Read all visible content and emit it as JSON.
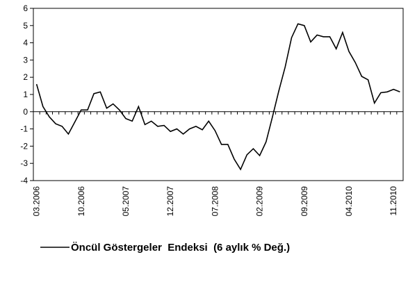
{
  "chart_data": {
    "type": "line",
    "categories": [
      "03.2006",
      null,
      null,
      null,
      null,
      null,
      null,
      "10.2006",
      null,
      null,
      null,
      null,
      null,
      null,
      "05.2007",
      null,
      null,
      null,
      null,
      null,
      null,
      "12.2007",
      null,
      null,
      null,
      null,
      null,
      null,
      "07.2008",
      null,
      null,
      null,
      null,
      null,
      null,
      "02.2009",
      null,
      null,
      null,
      null,
      null,
      null,
      "09.2009",
      null,
      null,
      null,
      null,
      null,
      null,
      "04.2010",
      null,
      null,
      null,
      null,
      null,
      null,
      "11.2010",
      null
    ],
    "series": [
      {
        "name": "Öncül Göstergeler  Endeksi  (6 aylık % Değ.)",
        "color": "#000000",
        "values": [
          1.6,
          0.3,
          -0.3,
          -0.7,
          -0.85,
          -1.3,
          -0.6,
          0.1,
          0.1,
          1.05,
          1.15,
          0.2,
          0.45,
          0.1,
          -0.4,
          -0.55,
          0.3,
          -0.75,
          -0.55,
          -0.85,
          -0.8,
          -1.15,
          -1.0,
          -1.3,
          -1.0,
          -0.85,
          -1.05,
          -0.55,
          -1.1,
          -1.9,
          -1.9,
          -2.75,
          -3.35,
          -2.5,
          -2.15,
          -2.55,
          -1.75,
          -0.3,
          1.2,
          2.6,
          4.3,
          5.1,
          5.0,
          4.05,
          4.45,
          4.35,
          4.35,
          3.65,
          4.6,
          3.5,
          2.85,
          2.05,
          1.85,
          0.5,
          1.1,
          1.15,
          1.3,
          1.15
        ]
      }
    ],
    "ylim": [
      -4,
      6
    ],
    "yticks": [
      -4,
      -3,
      -2,
      -1,
      0,
      1,
      2,
      3,
      4,
      5,
      6
    ],
    "grid": false,
    "legend": "bottom"
  }
}
